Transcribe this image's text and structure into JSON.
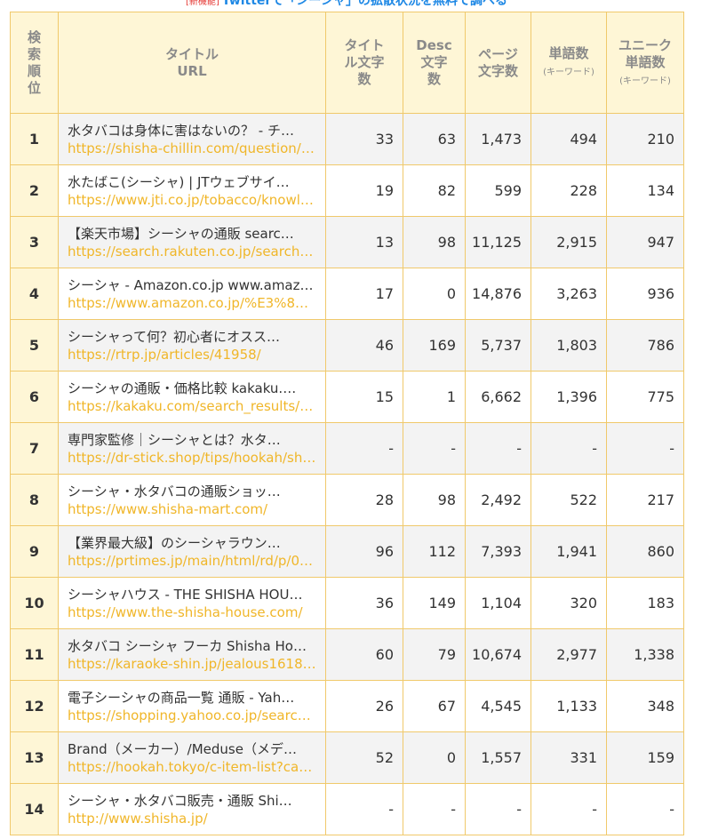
{
  "banner": {
    "badge": "[新機能]",
    "text": "Twitterで「シーシャ」の拡散状況を無料で調べる"
  },
  "table": {
    "headers": {
      "rank": "検索順位",
      "title_line1": "タイトル",
      "title_line2": "URL",
      "title_chars": "タイトル文字数",
      "desc_chars_line1": "Desc",
      "desc_chars_line2": "文字数",
      "page_chars_line1": "ページ",
      "page_chars_line2": "文字数",
      "words_main": "単語数",
      "words_sub": "(キーワード)",
      "unique_main": "ユニーク単語数",
      "unique_sub": "(キーワード)"
    },
    "rows": [
      {
        "rank": "1",
        "title": "水タバコは身体に害はないの？ - チ…",
        "url": "https://shisha-chillin.com/question/…",
        "title_chars": "33",
        "desc_chars": "63",
        "page_chars": "1,473",
        "words": "494",
        "unique": "210"
      },
      {
        "rank": "2",
        "title": "水たばこ(シーシャ) | JTウェブサイ…",
        "url": "https://www.jti.co.jp/tobacco/knowl…",
        "title_chars": "19",
        "desc_chars": "82",
        "page_chars": "599",
        "words": "228",
        "unique": "134"
      },
      {
        "rank": "3",
        "title": "【楽天市場】シーシャの通販 searc…",
        "url": "https://search.rakuten.co.jp/search/…",
        "title_chars": "13",
        "desc_chars": "98",
        "page_chars": "11,125",
        "words": "2,915",
        "unique": "947"
      },
      {
        "rank": "4",
        "title": "シーシャ - Amazon.co.jp www.amaz…",
        "url": "https://www.amazon.co.jp/%E3%82…",
        "title_chars": "17",
        "desc_chars": "0",
        "page_chars": "14,876",
        "words": "3,263",
        "unique": "936"
      },
      {
        "rank": "5",
        "title": "シーシャって何？初心者にオスス…",
        "url": "https://rtrp.jp/articles/41958/",
        "title_chars": "46",
        "desc_chars": "169",
        "page_chars": "5,737",
        "words": "1,803",
        "unique": "786"
      },
      {
        "rank": "6",
        "title": "シーシャの通販・価格比較 kakaku.…",
        "url": "https://kakaku.com/search_results/…",
        "title_chars": "15",
        "desc_chars": "1",
        "page_chars": "6,662",
        "words": "1,396",
        "unique": "775"
      },
      {
        "rank": "7",
        "title": "専門家監修｜シーシャとは？水タ…",
        "url": "https://dr-stick.shop/tips/hookah/sh…",
        "title_chars": "-",
        "desc_chars": "-",
        "page_chars": "-",
        "words": "-",
        "unique": "-"
      },
      {
        "rank": "8",
        "title": "シーシャ・水タバコの通販ショッ…",
        "url": "https://www.shisha-mart.com/",
        "title_chars": "28",
        "desc_chars": "98",
        "page_chars": "2,492",
        "words": "522",
        "unique": "217"
      },
      {
        "rank": "9",
        "title": "【業界最大級】のシーシャラウン…",
        "url": "https://prtimes.jp/main/html/rd/p/0…",
        "title_chars": "96",
        "desc_chars": "112",
        "page_chars": "7,393",
        "words": "1,941",
        "unique": "860"
      },
      {
        "rank": "10",
        "title": "シーシャハウス - THE SHISHA HOU…",
        "url": "https://www.the-shisha-house.com/",
        "title_chars": "36",
        "desc_chars": "149",
        "page_chars": "1,104",
        "words": "320",
        "unique": "183"
      },
      {
        "rank": "11",
        "title": "水タバコ シーシャ フーカ Shisha Ho…",
        "url": "https://karaoke-shin.jp/jealous1618…",
        "title_chars": "60",
        "desc_chars": "79",
        "page_chars": "10,674",
        "words": "2,977",
        "unique": "1,338"
      },
      {
        "rank": "12",
        "title": "電子シーシャの商品一覧 通販 - Yah…",
        "url": "https://shopping.yahoo.co.jp/search/…",
        "title_chars": "26",
        "desc_chars": "67",
        "page_chars": "4,545",
        "words": "1,133",
        "unique": "348"
      },
      {
        "rank": "13",
        "title": "Brand（メーカー）/Meduse（メデ…",
        "url": "https://hookah.tokyo/c-item-list?cat…",
        "title_chars": "52",
        "desc_chars": "0",
        "page_chars": "1,557",
        "words": "331",
        "unique": "159"
      },
      {
        "rank": "14",
        "title": "シーシャ・水タバコ販売・通販 Shi…",
        "url": "http://www.shisha.jp/",
        "title_chars": "-",
        "desc_chars": "-",
        "page_chars": "-",
        "words": "-",
        "unique": "-"
      }
    ]
  }
}
